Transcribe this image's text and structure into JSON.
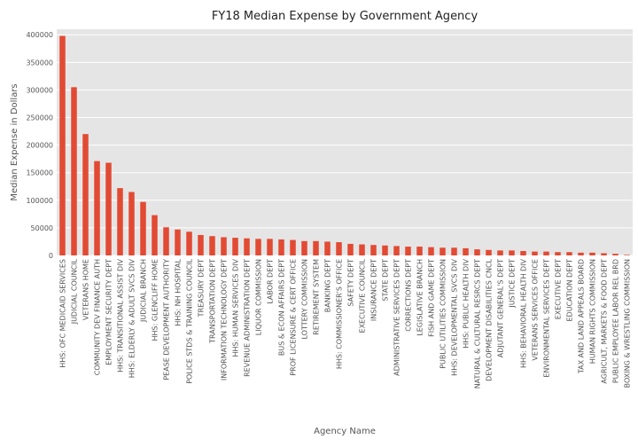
{
  "chart_data": {
    "type": "bar",
    "title": "FY18 Median Expense by Government Agency",
    "xlabel": "Agency Name",
    "ylabel": "Median Expense in Dollars",
    "ylim": [
      0,
      410000
    ],
    "yticks": [
      0,
      50000,
      100000,
      150000,
      200000,
      250000,
      300000,
      350000,
      400000
    ],
    "grid": true,
    "legend": "none",
    "colors": {
      "bar": "#E24A33",
      "plot_bg": "#E5E5E5",
      "grid": "#ffffff"
    },
    "categories": [
      "HHS: OFC MEDICAID SERVICES",
      "JUDICIAL COUNCIL",
      "VETERANS HOME",
      "COMMUNITY DEV FINANCE AUTH",
      "EMPLOYMENT SECURITY DEPT",
      "HHS: TRANSITIONAL ASSIST DIV",
      "HHS: ELDERLY & ADULT SVCS DIV",
      "JUDICIAL BRANCH",
      "HHS: GLENCLIFF HOME",
      "PEASE DEVELOPMENT AUTHORITY",
      "HHS: NH HOSPITAL",
      "POLICE STDS & TRAINING COUNCIL",
      "TREASURY DEPT",
      "TRANSPORTATION DEPT",
      "INFORMATION TECHNOLOGY DEPT",
      "HHS: HUMAN SERVICES DIV",
      "REVENUE ADMINISTRATION DEPT",
      "LIQUOR COMMISSION",
      "LABOR DEPT",
      "BUS & ECON AFFAIRS DEPT",
      "PROF LICENSURE & CERT OFFICE",
      "LOTTERY COMMISSION",
      "RETIREMENT SYSTEM",
      "BANKING DEPT",
      "HHS: COMMISSIONER'S OFFICE",
      "SAFETY DEPT",
      "EXECUTIVE COUNCIL",
      "INSURANCE DEPT",
      "STATE DEPT",
      "ADMINISTRATIVE SERVICES DEPT",
      "CORRECTIONS DEPT",
      "LEGISLATIVE BRANCH",
      "FISH AND GAME DEPT",
      "PUBLIC UTILITIES COMMISSION",
      "HHS: DEVELOPMENTAL SVCS DIV",
      "HHS: PUBLIC HEALTH DIV",
      "NATURAL & CULTURAL RESRCS DEPT",
      "DEVELOPMENT DISABILITIES CNCL",
      "ADJUTANT GENERAL'S DEPT",
      "JUSTICE DEPT",
      "HHS: BEHAVIORAL HEALTH DIV",
      "VETERANS SERVICES OFFICE",
      "ENVIRONMENTAL SERVICES DEPT",
      "EXECUTIVE DEPT",
      "EDUCATION DEPT",
      "TAX AND LAND APPEALS BOARD",
      "HUMAN RIGHTS COMMISSION",
      "AGRICULT, MARKETS & FOOD DEPT",
      "PUBLIC EMPLOYEE LABOR REL BRD",
      "BOXING & WRESTLING COMMISSION"
    ],
    "values": [
      398000,
      305000,
      220000,
      171000,
      168000,
      122000,
      115000,
      97000,
      73000,
      51000,
      47000,
      43000,
      37000,
      35000,
      33000,
      32000,
      31000,
      30000,
      30000,
      29000,
      28000,
      26000,
      26000,
      25000,
      24000,
      21000,
      20000,
      19000,
      18000,
      17000,
      16000,
      16000,
      15000,
      14000,
      14000,
      13000,
      11000,
      10000,
      9000,
      9000,
      8000,
      7000,
      7000,
      6000,
      6000,
      5000,
      5000,
      4000,
      3000,
      1000
    ]
  }
}
